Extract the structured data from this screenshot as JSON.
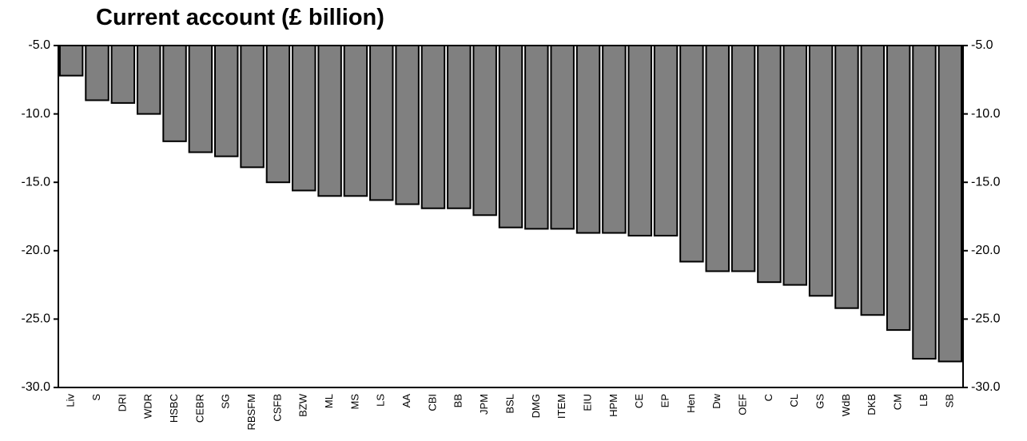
{
  "chart_data": {
    "type": "bar",
    "title": "Current account (£ billion)",
    "xlabel": "",
    "ylabel": "",
    "ylim": [
      -30,
      -5
    ],
    "yticks": [
      "-5.0",
      "-10.0",
      "-15.0",
      "-20.0",
      "-25.0",
      "-30.0"
    ],
    "ytick_values": [
      -5,
      -10,
      -15,
      -20,
      -25,
      -30
    ],
    "bar_color": "#808080",
    "categories": [
      "Liv",
      "S",
      "DRI",
      "WDR",
      "HSBC",
      "CEBR",
      "SG",
      "RBSFM",
      "CSFB",
      "BZW",
      "ML",
      "MS",
      "LS",
      "AA",
      "CBI",
      "BB",
      "JPM",
      "BSL",
      "DMG",
      "ITEM",
      "EIU",
      "HPM",
      "CE",
      "EP",
      "Hen",
      "Dw",
      "OEF",
      "C",
      "CL",
      "GS",
      "WdB",
      "DKB",
      "CM",
      "LB",
      "SB"
    ],
    "values": [
      -7.2,
      -9.0,
      -9.2,
      -10.0,
      -12.0,
      -12.8,
      -13.1,
      -13.9,
      -15.0,
      -15.6,
      -16.0,
      -16.0,
      -16.3,
      -16.6,
      -16.9,
      -16.9,
      -17.4,
      -18.3,
      -18.4,
      -18.4,
      -18.7,
      -18.7,
      -18.9,
      -18.9,
      -20.8,
      -21.5,
      -21.5,
      -22.3,
      -22.5,
      -23.3,
      -24.2,
      -24.7,
      -25.8,
      -27.9,
      -28.1
    ]
  }
}
